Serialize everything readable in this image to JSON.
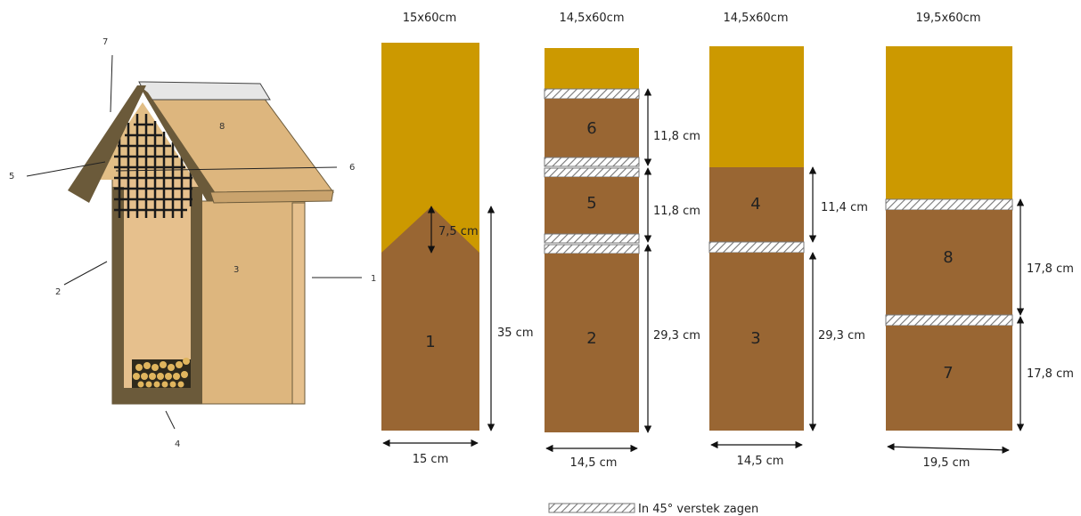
{
  "colors": {
    "waste": "#CC9900",
    "wood": "#996633",
    "house_wood": "#DDB67E",
    "house_frame": "#5E4F32",
    "roof_cap": "#E0E0E0",
    "grid": "#1A1A1A"
  },
  "house": {
    "part_labels": [
      "1",
      "2",
      "3",
      "4",
      "5",
      "6",
      "7",
      "8"
    ]
  },
  "planks": [
    {
      "title": "15x60cm",
      "width_label": "15 cm",
      "pieces": [
        "1"
      ],
      "dimensions": [
        "7,5 cm",
        "35 cm"
      ]
    },
    {
      "title": "14,5x60cm",
      "width_label": "14,5 cm",
      "pieces": [
        "6",
        "5",
        "2"
      ],
      "dimensions": [
        "11,8 cm",
        "11,8 cm",
        "29,3 cm"
      ]
    },
    {
      "title": "14,5x60cm",
      "width_label": "14,5 cm",
      "pieces": [
        "4",
        "3"
      ],
      "dimensions": [
        "11,4 cm",
        "29,3 cm"
      ]
    },
    {
      "title": "19,5x60cm",
      "width_label": "19,5 cm",
      "pieces": [
        "8",
        "7"
      ],
      "dimensions": [
        "17,8 cm",
        "17,8 cm"
      ]
    }
  ],
  "legend": {
    "text": "In 45° verstek zagen"
  }
}
